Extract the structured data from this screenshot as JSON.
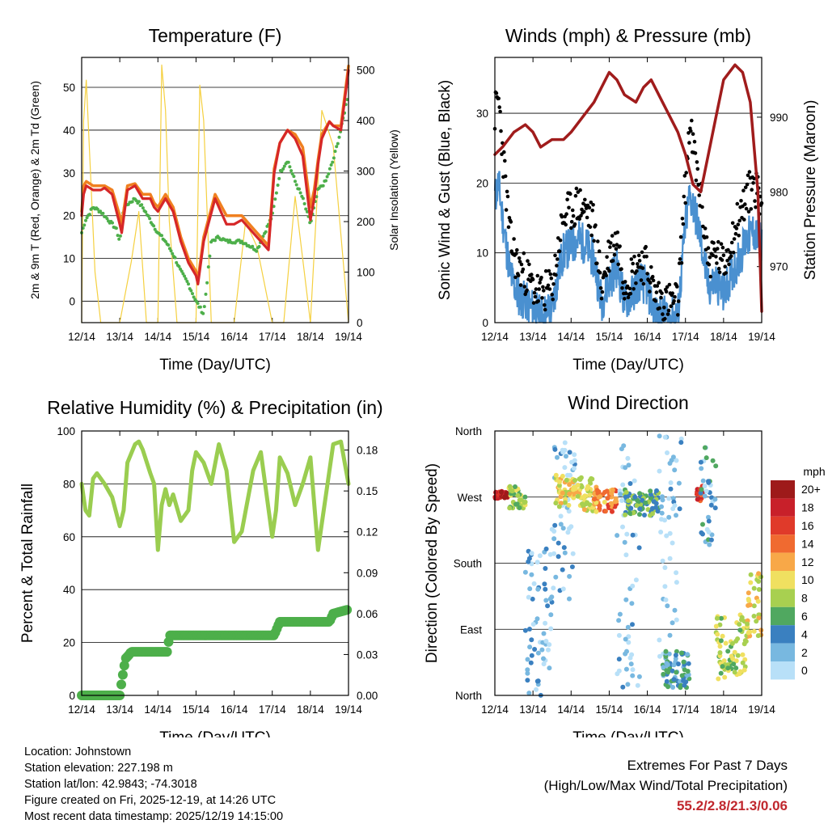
{
  "chart_data": [
    {
      "type": "line",
      "title": "Temperature (F)",
      "xlabel": "Time (Day/UTC)",
      "ylabel": "2m & 9m T (Red, Orange) & 2m Td (Green)",
      "y2label": "Solar Insolation (Yellow)",
      "x_ticks": [
        "12/14",
        "13/14",
        "14/14",
        "15/14",
        "16/14",
        "17/14",
        "18/14",
        "19/14"
      ],
      "ylim": [
        -5,
        57
      ],
      "y_ticks": [
        0,
        10,
        20,
        30,
        40,
        50
      ],
      "y2lim": [
        0,
        525
      ],
      "y2_ticks": [
        0,
        100,
        200,
        300,
        400,
        500
      ],
      "grid": "horizontal",
      "x_unit": "days since 12/14 14 UTC",
      "series": [
        {
          "name": "2m T",
          "color": "#d62728",
          "x": [
            0,
            0.05,
            0.12,
            0.3,
            0.5,
            0.6,
            0.8,
            1.0,
            1.05,
            1.2,
            1.4,
            1.6,
            1.8,
            1.9,
            2.0,
            2.2,
            2.4,
            2.6,
            2.8,
            3.0,
            3.05,
            3.2,
            3.5,
            3.8,
            4.0,
            4.2,
            4.5,
            4.9,
            5.05,
            5.2,
            5.4,
            5.6,
            5.8,
            6.0,
            6.1,
            6.2,
            6.3,
            6.5,
            6.6,
            6.8,
            7.0
          ],
          "y": [
            20,
            25,
            27,
            26,
            26,
            26.5,
            25,
            18,
            16,
            26,
            27,
            24,
            24,
            22,
            21,
            24,
            21,
            14,
            9,
            6,
            4,
            14,
            24,
            18,
            18,
            19,
            16,
            12,
            30,
            37,
            40,
            38,
            34,
            19,
            24,
            32,
            38,
            42,
            41,
            40,
            54
          ]
        },
        {
          "name": "9m T",
          "color": "#f08020",
          "x": [
            0,
            0.05,
            0.12,
            0.3,
            0.5,
            0.6,
            0.8,
            1.0,
            1.05,
            1.2,
            1.4,
            1.6,
            1.8,
            1.9,
            2.0,
            2.2,
            2.4,
            2.6,
            2.8,
            3.0,
            3.05,
            3.2,
            3.5,
            3.8,
            4.0,
            4.2,
            4.5,
            4.9,
            5.05,
            5.2,
            5.4,
            5.6,
            5.8,
            6.0,
            6.1,
            6.2,
            6.3,
            6.5,
            6.6,
            6.8,
            7.0
          ],
          "y": [
            21,
            27,
            28,
            27,
            27,
            27,
            26,
            20,
            18,
            27,
            27.5,
            25,
            25,
            23,
            22,
            25,
            22,
            15,
            10,
            7,
            5,
            15,
            25,
            20,
            20,
            20,
            17,
            13,
            31,
            37,
            40,
            39,
            36,
            22,
            26,
            33,
            39,
            42,
            41,
            41,
            55
          ]
        },
        {
          "name": "2m Td",
          "color": "#4daf4a",
          "x": [
            0,
            0.1,
            0.3,
            0.5,
            0.7,
            0.9,
            1.0,
            1.1,
            1.4,
            1.6,
            1.8,
            2.0,
            2.2,
            2.4,
            2.6,
            2.8,
            3.0,
            3.2,
            3.4,
            3.6,
            3.8,
            4.0,
            4.2,
            4.6,
            5.0,
            5.2,
            5.4,
            5.6,
            5.8,
            6.0,
            6.2,
            6.4,
            6.6,
            6.8,
            7.0
          ],
          "y": [
            16,
            19,
            22,
            21,
            19,
            17,
            14,
            22,
            24,
            22,
            19,
            16,
            14,
            11,
            7,
            4,
            0,
            -3,
            14,
            15,
            14,
            14,
            14,
            12,
            20,
            30,
            33,
            28,
            24,
            18,
            26,
            28,
            33,
            40,
            49
          ]
        },
        {
          "name": "Solar Insolation",
          "axis": "y2",
          "color": "#f5d040",
          "x": [
            0,
            0.05,
            0.12,
            0.2,
            0.35,
            0.5,
            1.0,
            1.3,
            1.5,
            1.7,
            2.0,
            2.1,
            2.2,
            2.3,
            2.5,
            3.0,
            3.1,
            3.2,
            3.4,
            4.0,
            4.3,
            4.6,
            5.0,
            5.3,
            5.6,
            6.0,
            6.3,
            6.6,
            7.0
          ],
          "y": [
            0,
            400,
            480,
            350,
            100,
            0,
            0,
            120,
            220,
            0,
            0,
            510,
            420,
            200,
            0,
            0,
            470,
            400,
            0,
            0,
            200,
            150,
            0,
            0,
            250,
            0,
            420,
            350,
            0
          ]
        }
      ]
    },
    {
      "type": "line",
      "title": "Winds (mph) & Pressure (mb)",
      "xlabel": "Time (Day/UTC)",
      "ylabel": "Sonic Wind & Gust (Blue, Black)",
      "y2label": "Station Pressure (Maroon)",
      "x_ticks": [
        "12/14",
        "13/14",
        "14/14",
        "15/14",
        "16/14",
        "17/14",
        "18/14",
        "19/14"
      ],
      "ylim": [
        0,
        38
      ],
      "y_ticks": [
        0,
        10,
        20,
        30
      ],
      "y2lim": [
        962.5,
        998
      ],
      "y2_ticks": [
        970,
        980,
        990
      ],
      "grid": "horizontal",
      "series": [
        {
          "name": "Gust",
          "color": "#000000",
          "x": [
            0,
            0.1,
            0.2,
            0.4,
            0.6,
            0.8,
            1.0,
            1.2,
            1.5,
            1.7,
            1.8,
            2.0,
            2.2,
            2.4,
            2.6,
            2.8,
            3.0,
            3.2,
            3.4,
            3.6,
            3.8,
            4.0,
            4.2,
            4.5,
            4.8,
            5.0,
            5.1,
            5.2,
            5.4,
            5.6,
            5.8,
            6.0,
            6.2,
            6.4,
            6.6,
            6.8,
            7.0
          ],
          "y": [
            30,
            32,
            25,
            12,
            8,
            7,
            5,
            4,
            5,
            12,
            15,
            16,
            17,
            16,
            14,
            5,
            10,
            12,
            6,
            7,
            9,
            8,
            4,
            3,
            3,
            20,
            28,
            25,
            18,
            9,
            10,
            8,
            12,
            15,
            18,
            20,
            17
          ]
        },
        {
          "name": "Sonic Wind",
          "color": "#4a90d0",
          "x": [
            0,
            0.1,
            0.2,
            0.4,
            0.6,
            0.8,
            1.0,
            1.2,
            1.5,
            1.7,
            1.8,
            2.0,
            2.2,
            2.4,
            2.6,
            2.8,
            3.0,
            3.2,
            3.4,
            3.6,
            3.8,
            4.0,
            4.2,
            4.5,
            4.8,
            5.0,
            5.1,
            5.2,
            5.4,
            5.6,
            5.8,
            6.0,
            6.2,
            6.4,
            6.6,
            6.8,
            7.0
          ],
          "y": [
            18,
            20,
            15,
            7,
            4,
            3,
            2,
            1,
            2,
            8,
            10,
            11,
            12,
            11,
            9,
            3,
            6,
            8,
            3,
            4,
            6,
            5,
            1,
            1,
            1,
            14,
            18,
            17,
            12,
            5,
            6,
            4,
            7,
            9,
            12,
            13,
            11
          ]
        },
        {
          "name": "Station Pressure",
          "axis": "y2",
          "color": "#a01c1c",
          "x": [
            0,
            0.2,
            0.5,
            0.8,
            1.0,
            1.2,
            1.5,
            1.8,
            2.0,
            2.3,
            2.6,
            2.9,
            3.0,
            3.2,
            3.4,
            3.7,
            3.9,
            4.1,
            4.4,
            4.8,
            5.0,
            5.2,
            5.4,
            5.6,
            5.8,
            6.0,
            6.3,
            6.5,
            6.7,
            6.9,
            7.0
          ],
          "y": [
            985,
            986,
            988,
            989,
            988,
            986,
            987,
            987,
            988,
            990,
            992,
            995,
            996,
            995,
            993,
            992,
            994,
            995,
            992,
            988,
            985,
            981,
            980,
            985,
            990,
            995,
            997,
            996,
            992,
            980,
            964
          ]
        }
      ]
    },
    {
      "type": "line",
      "title": "Relative Humidity (%) & Precipitation (in)",
      "xlabel": "Time (Day/UTC)",
      "ylabel": "Percent & Total Rainfall",
      "x_ticks": [
        "12/14",
        "13/14",
        "14/14",
        "15/14",
        "16/14",
        "17/14",
        "18/14",
        "19/14"
      ],
      "ylim": [
        0,
        100
      ],
      "y_ticks": [
        0,
        20,
        40,
        60,
        80,
        100
      ],
      "y2lim": [
        0,
        0.194
      ],
      "y2_ticks": [
        "0.00",
        "0.03",
        "0.06",
        "0.09",
        "0.12",
        "0.15",
        "0.18"
      ],
      "grid": "horizontal",
      "series": [
        {
          "name": "Relative Humidity",
          "color": "#9acd50",
          "x": [
            0,
            0.1,
            0.2,
            0.3,
            0.4,
            0.6,
            0.8,
            1.0,
            1.1,
            1.2,
            1.4,
            1.5,
            1.6,
            1.8,
            1.9,
            2.0,
            2.1,
            2.2,
            2.3,
            2.4,
            2.6,
            2.8,
            2.9,
            3.0,
            3.2,
            3.4,
            3.6,
            3.8,
            4.0,
            4.2,
            4.5,
            4.7,
            5.0,
            5.1,
            5.2,
            5.4,
            5.6,
            5.8,
            6.0,
            6.2,
            6.4,
            6.6,
            6.8,
            7.0
          ],
          "y": [
            80,
            70,
            68,
            82,
            84,
            80,
            75,
            64,
            70,
            88,
            95,
            96,
            93,
            84,
            80,
            55,
            72,
            78,
            72,
            76,
            66,
            70,
            85,
            92,
            88,
            80,
            95,
            85,
            58,
            62,
            85,
            92,
            60,
            70,
            90,
            84,
            72,
            80,
            90,
            55,
            75,
            95,
            96,
            80
          ]
        },
        {
          "name": "Total Precipitation",
          "axis": "y2",
          "color": "#4daf4a",
          "x": [
            0,
            1.0,
            1.05,
            1.15,
            1.25,
            1.3,
            2.25,
            2.3,
            5.05,
            5.15,
            5.2,
            6.5,
            6.6,
            7.0
          ],
          "y": [
            0,
            0,
            0.01,
            0.027,
            0.03,
            0.032,
            0.032,
            0.044,
            0.044,
            0.051,
            0.054,
            0.054,
            0.06,
            0.063
          ]
        }
      ]
    },
    {
      "type": "scatter",
      "title": "Wind Direction",
      "xlabel": "Time (Day/UTC)",
      "ylabel": "Direction (Colored By Speed)",
      "x_ticks": [
        "12/14",
        "13/14",
        "14/14",
        "15/14",
        "16/14",
        "17/14",
        "18/14",
        "19/14"
      ],
      "y_ticks": [
        "North",
        "East",
        "South",
        "West",
        "North"
      ],
      "ylim": [
        0,
        360
      ],
      "grid": "horizontal",
      "colorbar": {
        "unit": "mph",
        "labels": [
          "20+",
          "18",
          "16",
          "14",
          "12",
          "10",
          "8",
          "6",
          "4",
          "2",
          "0"
        ],
        "colors": [
          "#9e1a1a",
          "#c8202a",
          "#e03a2a",
          "#f06a30",
          "#f8a848",
          "#f0e060",
          "#a8d050",
          "#50a860",
          "#3a80c0",
          "#78b8e0",
          "#b8e0f8"
        ]
      },
      "clusters": [
        {
          "x0": 0.0,
          "x1": 0.35,
          "dir0": 268,
          "dir1": 278,
          "speed": 19
        },
        {
          "x0": 0.35,
          "x1": 0.8,
          "dir0": 255,
          "dir1": 285,
          "speed": 9
        },
        {
          "x0": 0.8,
          "x1": 1.5,
          "dir0": 0,
          "dir1": 200,
          "speed": 3
        },
        {
          "x0": 1.5,
          "x1": 2.1,
          "dir0": 130,
          "dir1": 345,
          "speed": 2
        },
        {
          "x0": 1.6,
          "x1": 2.6,
          "dir0": 250,
          "dir1": 300,
          "speed": 11
        },
        {
          "x0": 2.6,
          "x1": 3.2,
          "dir0": 250,
          "dir1": 285,
          "speed": 14
        },
        {
          "x0": 3.2,
          "x1": 3.8,
          "dir0": 0,
          "dir1": 340,
          "speed": 2
        },
        {
          "x0": 3.4,
          "x1": 4.3,
          "dir0": 245,
          "dir1": 280,
          "speed": 7
        },
        {
          "x0": 4.3,
          "x1": 4.9,
          "dir0": 0,
          "dir1": 360,
          "speed": 2
        },
        {
          "x0": 4.4,
          "x1": 5.1,
          "dir0": 10,
          "dir1": 60,
          "speed": 5
        },
        {
          "x0": 5.3,
          "x1": 5.45,
          "dir0": 265,
          "dir1": 285,
          "speed": 17
        },
        {
          "x0": 5.4,
          "x1": 5.8,
          "dir0": 200,
          "dir1": 340,
          "speed": 4
        },
        {
          "x0": 5.8,
          "x1": 6.6,
          "dir0": 20,
          "dir1": 110,
          "speed": 9
        },
        {
          "x0": 6.6,
          "x1": 7.0,
          "dir0": 80,
          "dir1": 170,
          "speed": 11
        }
      ]
    }
  ],
  "station_info": {
    "location": "Location: Johnstown",
    "elevation": "Station elevation: 227.198 m",
    "latlon": "Station lat/lon: 42.9843; -74.3018",
    "created": "Figure created on Fri, 2025-12-19, at 14:26 UTC",
    "latest": "Most recent data timestamp: 2025/12/19 14:15:00"
  },
  "extremes": {
    "title": "Extremes For Past 7 Days",
    "subtitle": "(High/Low/Max Wind/Total Precipitation)",
    "values": "55.2/2.8/21.3/0.06"
  }
}
